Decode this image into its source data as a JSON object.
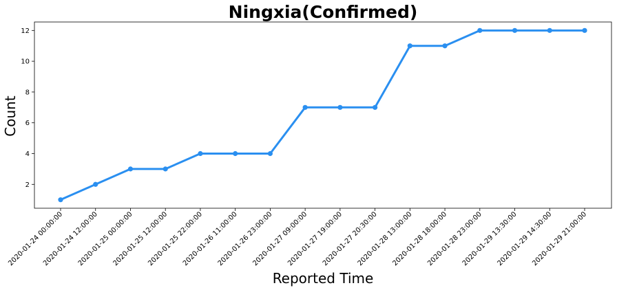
{
  "chart_data": {
    "type": "line",
    "title": "Ningxia(Confirmed)",
    "xlabel": "Reported Time",
    "ylabel": "Count",
    "categories": [
      "2020-01-24 00:00:00",
      "2020-01-24 12:00:00",
      "2020-01-25 00:00:00",
      "2020-01-25 12:00:00",
      "2020-01-25 22:00:00",
      "2020-01-26 11:00:00",
      "2020-01-26 23:00:00",
      "2020-01-27 09:00:00",
      "2020-01-27 19:00:00",
      "2020-01-27 20:30:00",
      "2020-01-28 13:00:00",
      "2020-01-28 18:00:00",
      "2020-01-28 23:00:00",
      "2020-01-29 13:30:00",
      "2020-01-29 14:30:00",
      "2020-01-29 21:00:00"
    ],
    "values": [
      1,
      2,
      3,
      3,
      4,
      4,
      4,
      7,
      7,
      7,
      11,
      11,
      12,
      12,
      12,
      12
    ],
    "ylim": [
      0.45,
      12.55
    ],
    "yticks": [
      2,
      4,
      6,
      8,
      10,
      12
    ],
    "grid": false,
    "line_color": "#2a8ff0"
  }
}
